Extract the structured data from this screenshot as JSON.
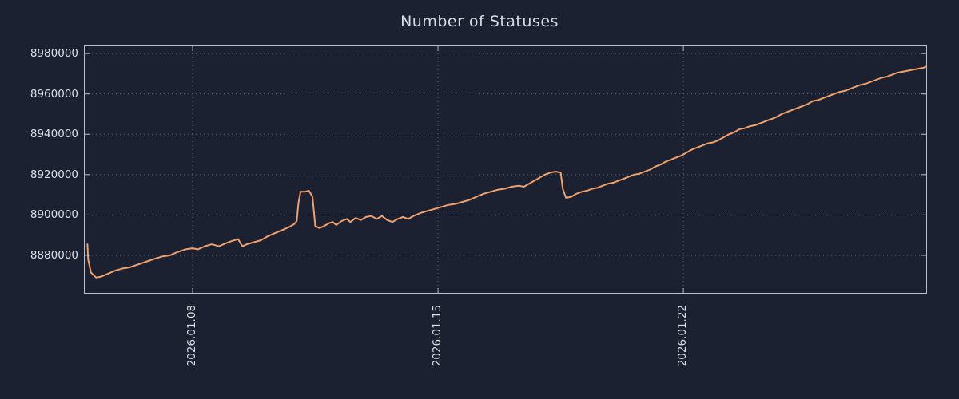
{
  "colors": {
    "background": "#1b2130",
    "text": "#d8dee6",
    "grid": "#55657f",
    "border": "#b7c0cc",
    "line": "#f0a06a"
  },
  "chart_data": {
    "type": "line",
    "title": "Number of Statuses",
    "xlabel": "",
    "ylabel": "",
    "grid": true,
    "legend": "none",
    "x_range": [
      4.9,
      28.95
    ],
    "y_range": [
      8861000,
      8984000
    ],
    "x_ticks": [
      {
        "value": 8,
        "label": "2026.01.08"
      },
      {
        "value": 15,
        "label": "2026.01.15"
      },
      {
        "value": 22,
        "label": "2026.01.22"
      }
    ],
    "y_ticks": [
      {
        "value": 8880000,
        "label": "8880000"
      },
      {
        "value": 8900000,
        "label": "8900000"
      },
      {
        "value": 8920000,
        "label": "8920000"
      },
      {
        "value": 8940000,
        "label": "8940000"
      },
      {
        "value": 8960000,
        "label": "8960000"
      },
      {
        "value": 8980000,
        "label": "8980000"
      }
    ],
    "line_color": "#f0a06a",
    "points": [
      [
        5.0,
        8885500
      ],
      [
        5.02,
        8878000
      ],
      [
        5.1,
        8871500
      ],
      [
        5.25,
        8869000
      ],
      [
        5.4,
        8869500
      ],
      [
        5.6,
        8871000
      ],
      [
        5.8,
        8872500
      ],
      [
        6.0,
        8873500
      ],
      [
        6.2,
        8874000
      ],
      [
        6.45,
        8875500
      ],
      [
        6.7,
        8877000
      ],
      [
        6.95,
        8878500
      ],
      [
        7.15,
        8879500
      ],
      [
        7.35,
        8880000
      ],
      [
        7.55,
        8881500
      ],
      [
        7.8,
        8883000
      ],
      [
        8.0,
        8883500
      ],
      [
        8.15,
        8883000
      ],
      [
        8.35,
        8884500
      ],
      [
        8.55,
        8885500
      ],
      [
        8.75,
        8884500
      ],
      [
        8.95,
        8886000
      ],
      [
        9.1,
        8887000
      ],
      [
        9.3,
        8888000
      ],
      [
        9.42,
        8884500
      ],
      [
        9.55,
        8885500
      ],
      [
        9.75,
        8886500
      ],
      [
        9.95,
        8887500
      ],
      [
        10.15,
        8889500
      ],
      [
        10.35,
        8891000
      ],
      [
        10.55,
        8892500
      ],
      [
        10.75,
        8894000
      ],
      [
        10.9,
        8895500
      ],
      [
        10.97,
        8897000
      ],
      [
        11.02,
        8906000
      ],
      [
        11.08,
        8911500
      ],
      [
        11.2,
        8911500
      ],
      [
        11.32,
        8912000
      ],
      [
        11.42,
        8909000
      ],
      [
        11.5,
        8894500
      ],
      [
        11.62,
        8893500
      ],
      [
        11.75,
        8894500
      ],
      [
        11.9,
        8896000
      ],
      [
        12.0,
        8896500
      ],
      [
        12.1,
        8895000
      ],
      [
        12.25,
        8897000
      ],
      [
        12.4,
        8898000
      ],
      [
        12.5,
        8896500
      ],
      [
        12.65,
        8898500
      ],
      [
        12.8,
        8897500
      ],
      [
        12.95,
        8899000
      ],
      [
        13.1,
        8899500
      ],
      [
        13.25,
        8898000
      ],
      [
        13.4,
        8899500
      ],
      [
        13.55,
        8897500
      ],
      [
        13.7,
        8896500
      ],
      [
        13.85,
        8898000
      ],
      [
        14.0,
        8899000
      ],
      [
        14.15,
        8898000
      ],
      [
        14.3,
        8899500
      ],
      [
        14.5,
        8901000
      ],
      [
        14.7,
        8902000
      ],
      [
        14.9,
        8903000
      ],
      [
        15.1,
        8904000
      ],
      [
        15.3,
        8905000
      ],
      [
        15.5,
        8905500
      ],
      [
        15.7,
        8906500
      ],
      [
        15.9,
        8907500
      ],
      [
        16.1,
        8909000
      ],
      [
        16.3,
        8910500
      ],
      [
        16.5,
        8911500
      ],
      [
        16.7,
        8912500
      ],
      [
        16.9,
        8913000
      ],
      [
        17.1,
        8914000
      ],
      [
        17.3,
        8914500
      ],
      [
        17.45,
        8914000
      ],
      [
        17.6,
        8915500
      ],
      [
        17.75,
        8917000
      ],
      [
        17.9,
        8918500
      ],
      [
        18.05,
        8920000
      ],
      [
        18.2,
        8921000
      ],
      [
        18.35,
        8921500
      ],
      [
        18.5,
        8921000
      ],
      [
        18.56,
        8913000
      ],
      [
        18.65,
        8908500
      ],
      [
        18.8,
        8909000
      ],
      [
        18.95,
        8910500
      ],
      [
        19.1,
        8911500
      ],
      [
        19.25,
        8912000
      ],
      [
        19.4,
        8913000
      ],
      [
        19.55,
        8913500
      ],
      [
        19.7,
        8914500
      ],
      [
        19.85,
        8915500
      ],
      [
        20.0,
        8916000
      ],
      [
        20.15,
        8917000
      ],
      [
        20.3,
        8918000
      ],
      [
        20.45,
        8919000
      ],
      [
        20.6,
        8920000
      ],
      [
        20.75,
        8920500
      ],
      [
        20.9,
        8921500
      ],
      [
        21.05,
        8922500
      ],
      [
        21.2,
        8924000
      ],
      [
        21.35,
        8925000
      ],
      [
        21.5,
        8926500
      ],
      [
        21.65,
        8927500
      ],
      [
        21.8,
        8928500
      ],
      [
        21.95,
        8929500
      ],
      [
        22.1,
        8931000
      ],
      [
        22.25,
        8932500
      ],
      [
        22.4,
        8933500
      ],
      [
        22.55,
        8934500
      ],
      [
        22.7,
        8935500
      ],
      [
        22.85,
        8936000
      ],
      [
        23.0,
        8937000
      ],
      [
        23.15,
        8938500
      ],
      [
        23.3,
        8940000
      ],
      [
        23.45,
        8941000
      ],
      [
        23.6,
        8942500
      ],
      [
        23.75,
        8943000
      ],
      [
        23.9,
        8944000
      ],
      [
        24.05,
        8944500
      ],
      [
        24.2,
        8945500
      ],
      [
        24.35,
        8946500
      ],
      [
        24.5,
        8947500
      ],
      [
        24.65,
        8948500
      ],
      [
        24.8,
        8950000
      ],
      [
        24.95,
        8951000
      ],
      [
        25.1,
        8952000
      ],
      [
        25.25,
        8953000
      ],
      [
        25.4,
        8954000
      ],
      [
        25.55,
        8955000
      ],
      [
        25.7,
        8956500
      ],
      [
        25.85,
        8957000
      ],
      [
        26.0,
        8958000
      ],
      [
        26.15,
        8959000
      ],
      [
        26.3,
        8960000
      ],
      [
        26.45,
        8961000
      ],
      [
        26.6,
        8961500
      ],
      [
        26.75,
        8962500
      ],
      [
        26.9,
        8963500
      ],
      [
        27.05,
        8964500
      ],
      [
        27.2,
        8965000
      ],
      [
        27.35,
        8966000
      ],
      [
        27.5,
        8967000
      ],
      [
        27.65,
        8968000
      ],
      [
        27.8,
        8968500
      ],
      [
        27.95,
        8969500
      ],
      [
        28.1,
        8970500
      ],
      [
        28.25,
        8971000
      ],
      [
        28.4,
        8971500
      ],
      [
        28.55,
        8972000
      ],
      [
        28.7,
        8972500
      ],
      [
        28.85,
        8973000
      ],
      [
        28.93,
        8973500
      ]
    ]
  }
}
